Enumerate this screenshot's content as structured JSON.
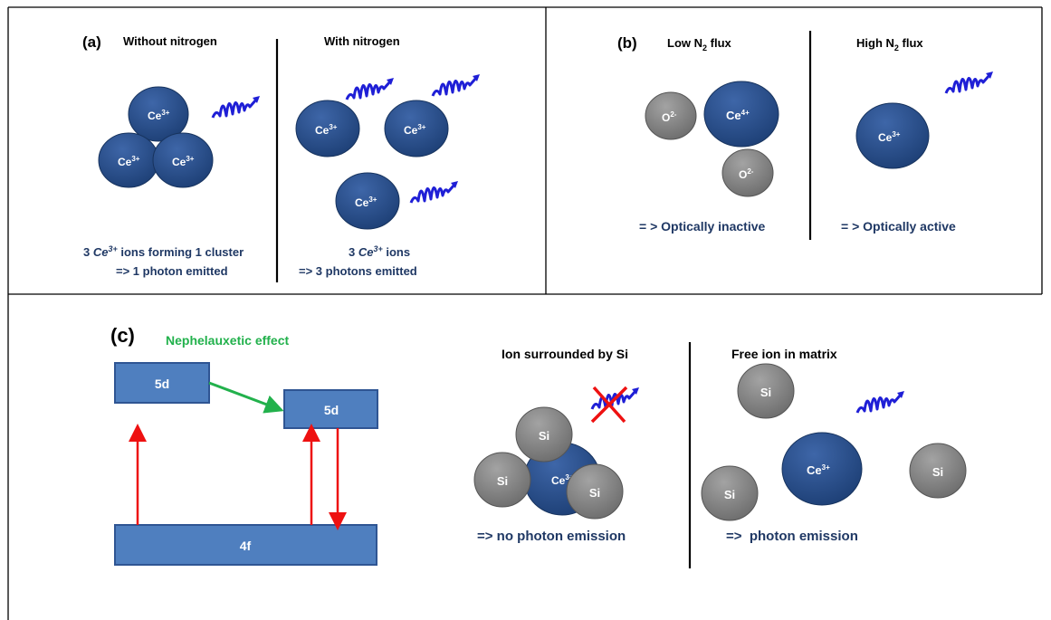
{
  "panel_a": {
    "label": "(a)",
    "left_title": "Without nitrogen",
    "right_title": "With nitrogen",
    "ion": "Ce",
    "ion_charge": "3+",
    "left_caption_1_num": "3 ",
    "left_caption_1_ion": "Ce",
    "left_caption_1_charge": "3+",
    "left_caption_1_rest": " ions forming 1 cluster",
    "left_caption_2": "=> 1 photon emitted",
    "right_caption_1_num": "3 ",
    "right_caption_1_ion": "Ce",
    "right_caption_1_charge": "3+",
    "right_caption_1_rest": " ions",
    "right_caption_2": "=> 3 photons emitted"
  },
  "panel_b": {
    "label": "(b)",
    "left_title_pre": "Low N",
    "left_title_sub": "2",
    "left_title_post": " flux",
    "right_title_pre": "High N",
    "right_title_sub": "2",
    "right_title_post": " flux",
    "oxygen": "O",
    "oxygen_charge": "2-",
    "ce4": "Ce",
    "ce4_charge": "4+",
    "ce3": "Ce",
    "ce3_charge": "3+",
    "left_caption": "= > Optically inactive",
    "right_caption": "= > Optically active"
  },
  "panel_c": {
    "label": "(c)",
    "effect": "Nephelauxetic effect",
    "level_5d": "5d",
    "level_4f": "4f",
    "middle_title": "Ion surrounded by Si",
    "right_title": "Free ion in matrix",
    "si": "Si",
    "ion": "Ce",
    "ion_charge": "3+",
    "middle_caption": "=> no photon emission",
    "right_caption": "=>  photon emission"
  },
  "colors": {
    "ion_blue": "#2f5593",
    "photon_blue": "#1f1fd6",
    "si_gray": "#8a8a8a",
    "caption_navy": "#1f3864",
    "effect_green": "#22b14c",
    "level_blue": "#4f7fbf",
    "arrow_red": "#ee1111"
  }
}
